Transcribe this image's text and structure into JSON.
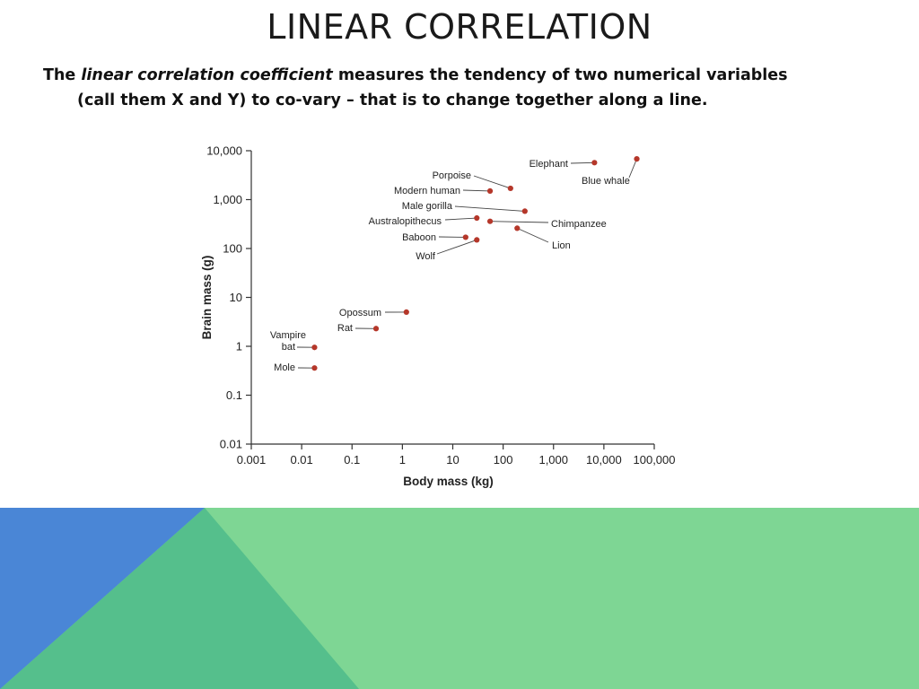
{
  "slide": {
    "title": "LINEAR CORRELATION",
    "text_before": "The ",
    "text_italic": "linear correlation coefficient",
    "text_after": " measures the tendency of two numerical variables",
    "text_line2": "(call them X and Y) to co-vary – that is to change together along a line."
  },
  "colors": {
    "point": "#b5372a",
    "axis": "#333333",
    "decor_blue": "#4a86d6",
    "decor_teal": "#55bf8c",
    "decor_green": "#7ed694"
  },
  "chart_data": {
    "type": "scatter",
    "xlabel": "Body mass (kg)",
    "ylabel": "Brain mass (g)",
    "x_scale": "log",
    "y_scale": "log",
    "xlim": [
      0.001,
      100000
    ],
    "ylim": [
      0.01,
      10000
    ],
    "x_ticks": [
      "0.001",
      "0.01",
      "0.1",
      "1",
      "10",
      "100",
      "1,000",
      "10,000",
      "100,000"
    ],
    "y_ticks": [
      "0.01",
      "0.1",
      "1",
      "10",
      "100",
      "1,000",
      "10,000"
    ],
    "grid": false,
    "points": [
      {
        "label": "Elephant",
        "x": 6500,
        "y": 5700
      },
      {
        "label": "Blue whale",
        "x": 45000,
        "y": 6800
      },
      {
        "label": "Porpoise",
        "x": 140,
        "y": 1700
      },
      {
        "label": "Modern human",
        "x": 55,
        "y": 1500
      },
      {
        "label": "Male gorilla",
        "x": 270,
        "y": 580
      },
      {
        "label": "Australopithecus",
        "x": 30,
        "y": 420
      },
      {
        "label": "Chimpanzee",
        "x": 55,
        "y": 360
      },
      {
        "label": "Baboon",
        "x": 18,
        "y": 170
      },
      {
        "label": "Wolf",
        "x": 30,
        "y": 150
      },
      {
        "label": "Lion",
        "x": 190,
        "y": 260
      },
      {
        "label": "Opossum",
        "x": 1.2,
        "y": 5
      },
      {
        "label": "Rat",
        "x": 0.3,
        "y": 2.3
      },
      {
        "label": "Vampire bat",
        "x": 0.018,
        "y": 0.95
      },
      {
        "label": "Mole",
        "x": 0.018,
        "y": 0.36
      }
    ]
  }
}
